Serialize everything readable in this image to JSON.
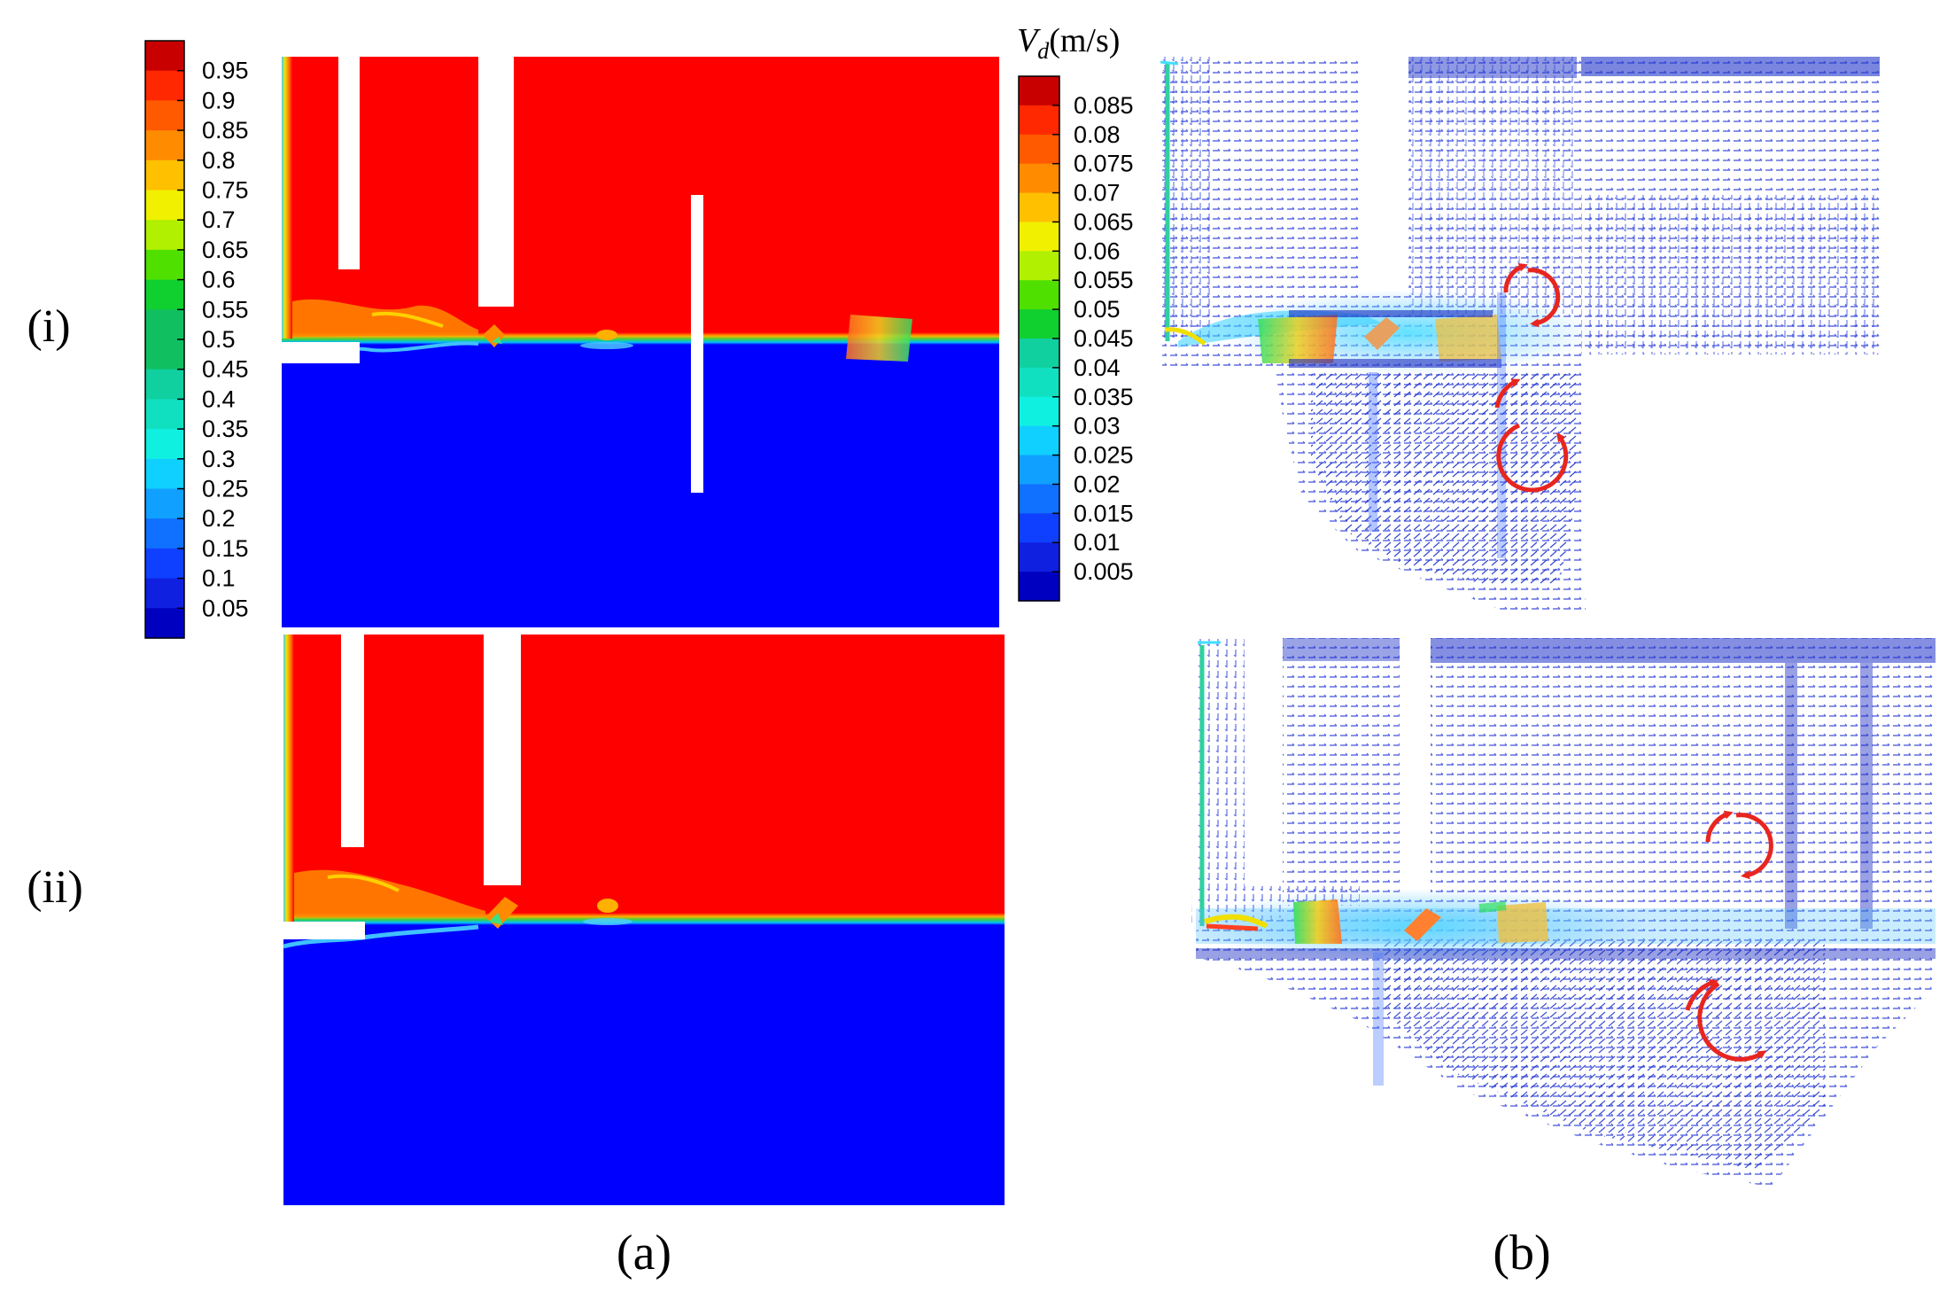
{
  "row_labels": [
    "(i)",
    "(ii)"
  ],
  "panel_labels": [
    "(a)",
    "(b)"
  ],
  "colorbar_a": {
    "ticks": [
      "0.95",
      "0.9",
      "0.85",
      "0.8",
      "0.75",
      "0.7",
      "0.65",
      "0.6",
      "0.55",
      "0.5",
      "0.45",
      "0.4",
      "0.35",
      "0.3",
      "0.25",
      "0.2",
      "0.15",
      "0.1",
      "0.05"
    ]
  },
  "colorbar_b": {
    "title_symbol": "V",
    "title_subscript": "d",
    "title_unit": "(m/s)",
    "ticks": [
      "0.085",
      "0.08",
      "0.075",
      "0.07",
      "0.065",
      "0.06",
      "0.055",
      "0.05",
      "0.045",
      "0.04",
      "0.035",
      "0.03",
      "0.025",
      "0.02",
      "0.015",
      "0.01",
      "0.005"
    ]
  },
  "colors": {
    "high": "#ff0000",
    "low": "#0000ff",
    "arrow": "#e8251f",
    "vector": "#2a3cd8"
  }
}
